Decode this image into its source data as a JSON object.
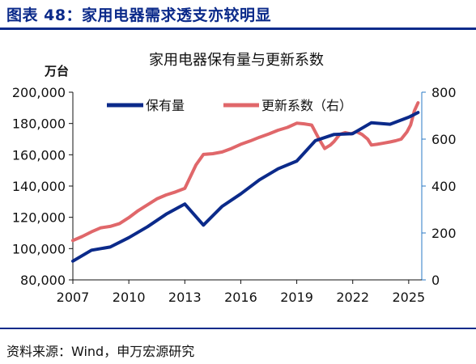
{
  "figure": {
    "title": "图表 48：家用电器需求透支亦较明显",
    "source": "资料来源：Wind，申万宏源研究"
  },
  "colors": {
    "brand": "#0b2a8a",
    "series_stock": "#0b2a8a",
    "series_ratio": "#e0676a",
    "right_axis": "#2a78c5",
    "text": "#111111"
  },
  "chart_data": {
    "type": "line",
    "title": "家用电器保有量与更新系数",
    "ylabel": "万台",
    "ylim": [
      80000,
      200000
    ],
    "y2lim": [
      0,
      800
    ],
    "xlim": [
      2007,
      2025.7
    ],
    "grid": false,
    "legend": "top-left",
    "xticks": [
      "2007",
      "2010",
      "2013",
      "2016",
      "2019",
      "2022",
      "2025"
    ],
    "yticks": [
      "80,000",
      "100,000",
      "120,000",
      "140,000",
      "160,000",
      "180,000",
      "200,000"
    ],
    "y2ticks": [
      "0",
      "200",
      "400",
      "600",
      "800"
    ],
    "series": [
      {
        "name": "保有量",
        "axis": "left",
        "x": [
          2007,
          2008,
          2009,
          2010,
          2011,
          2012,
          2013,
          2014,
          2015,
          2016,
          2017,
          2018,
          2019,
          2020,
          2021,
          2022,
          2023,
          2024,
          2025,
          2025.5
        ],
        "y": [
          92000,
          99000,
          101000,
          107000,
          114000,
          122000,
          128500,
          115000,
          127000,
          135000,
          144000,
          151000,
          156000,
          169000,
          173000,
          173500,
          180500,
          179500,
          184000,
          187000
        ]
      },
      {
        "name": "更新系数（右）",
        "axis": "right",
        "x": [
          2007,
          2007.5,
          2008,
          2008.5,
          2009,
          2009.5,
          2010,
          2010.5,
          2011,
          2011.5,
          2012,
          2012.5,
          2013,
          2013.3,
          2013.6,
          2014,
          2014.5,
          2015,
          2015.5,
          2016,
          2016.5,
          2017,
          2017.5,
          2018,
          2018.5,
          2019,
          2019.4,
          2019.8,
          2020.2,
          2020.5,
          2020.8,
          2021,
          2021.3,
          2021.6,
          2021.9,
          2022.2,
          2022.5,
          2022.8,
          2023,
          2023.3,
          2023.6,
          2024,
          2024.3,
          2024.6,
          2024.9,
          2025.1,
          2025.3,
          2025.5
        ],
        "y": [
          168,
          185,
          205,
          222,
          228,
          240,
          265,
          295,
          320,
          345,
          362,
          375,
          390,
          440,
          490,
          535,
          538,
          545,
          560,
          578,
          592,
          608,
          622,
          638,
          650,
          668,
          665,
          660,
          600,
          560,
          575,
          590,
          620,
          628,
          622,
          632,
          620,
          600,
          575,
          578,
          582,
          588,
          593,
          600,
          630,
          660,
          720,
          755
        ]
      }
    ]
  }
}
